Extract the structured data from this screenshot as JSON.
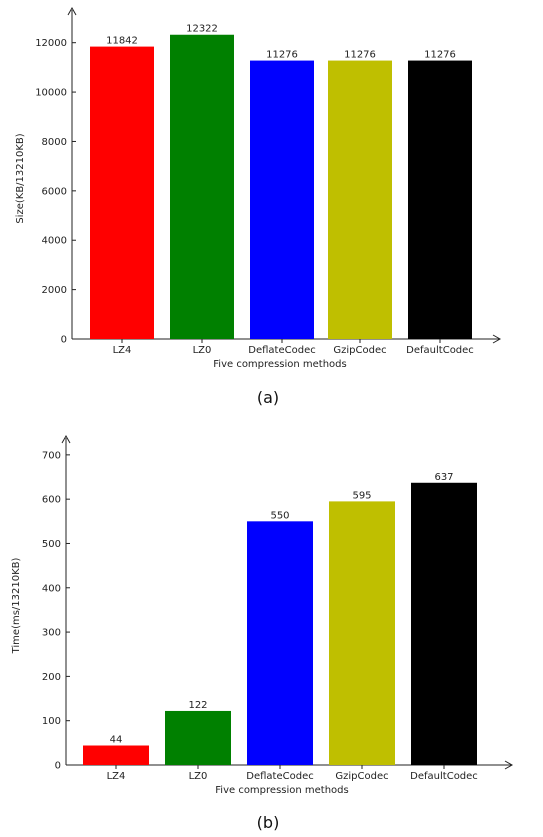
{
  "chart_data": [
    {
      "type": "bar",
      "categories": [
        "LZ4",
        "LZ0",
        "DeflateCodec",
        "GzipCodec",
        "DefaultCodec"
      ],
      "values": [
        11842,
        12322,
        11276,
        11276,
        11276
      ],
      "value_labels": [
        "11842",
        "12322",
        "11276",
        "11276",
        "11276"
      ],
      "colors": [
        "#ff0000",
        "#008000",
        "#0000ff",
        "#bfbf00",
        "#000000"
      ],
      "xlabel": "Five compression methods",
      "ylabel": "Size(KB/13210KB)",
      "ylim": [
        0,
        13000
      ],
      "yticks": [
        0,
        2000,
        4000,
        6000,
        8000,
        10000,
        12000
      ],
      "caption": "(a)"
    },
    {
      "type": "bar",
      "categories": [
        "LZ4",
        "LZ0",
        "DeflateCodec",
        "GzipCodec",
        "DefaultCodec"
      ],
      "values": [
        44,
        122,
        550,
        595,
        637
      ],
      "value_labels": [
        "44",
        "122",
        "550",
        "595",
        "637"
      ],
      "colors": [
        "#ff0000",
        "#008000",
        "#0000ff",
        "#bfbf00",
        "#000000"
      ],
      "xlabel": "Five compression methods",
      "ylabel": "Time(ms/13210KB)",
      "ylim": [
        0,
        720
      ],
      "yticks": [
        0,
        100,
        200,
        300,
        400,
        500,
        600,
        700
      ],
      "caption": "(b)"
    }
  ]
}
